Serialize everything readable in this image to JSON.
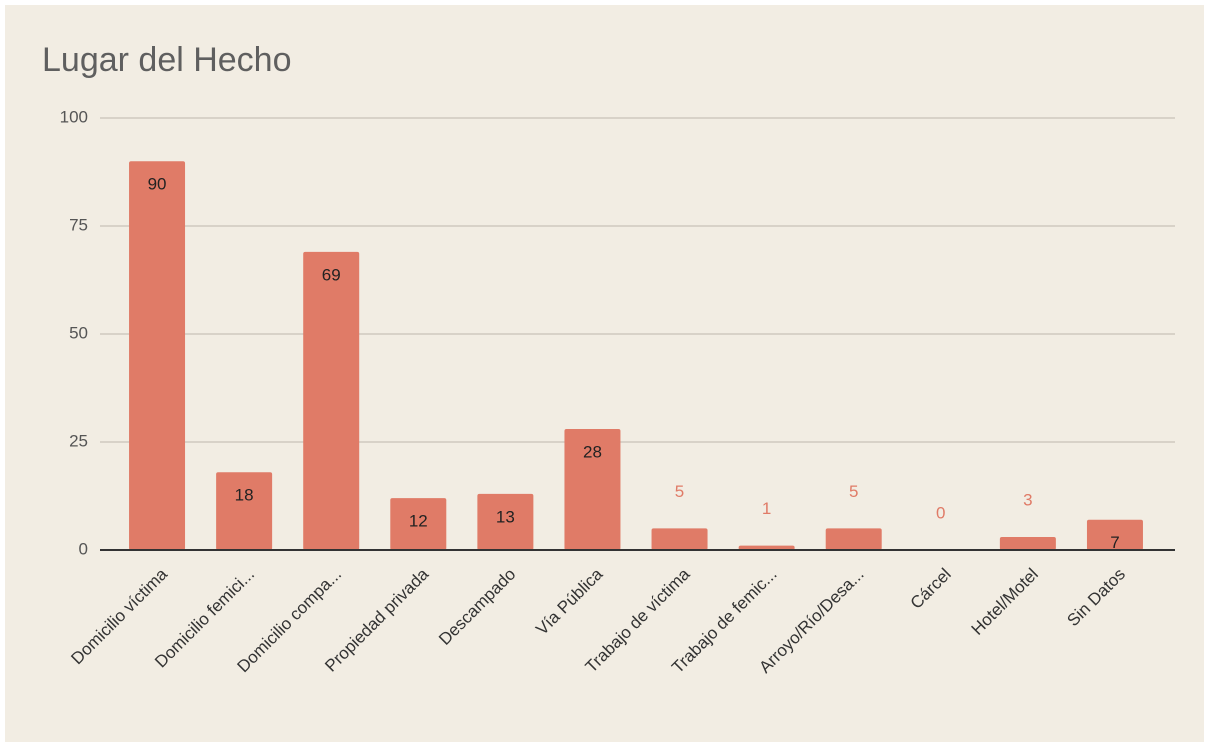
{
  "chart_data": {
    "type": "bar",
    "title": "Lugar del Hecho",
    "categories": [
      "Domicilio víctima",
      "Domicilio femici...",
      "Domicilio compa...",
      "Propiedad privada",
      "Descampado",
      "Vía Pública",
      "Trabajo de víctima",
      "Trabajo de femic...",
      "Arroyo/Río/Desa...",
      "Cárcel",
      "Hotel/Motel",
      "Sin Datos"
    ],
    "values": [
      90,
      18,
      69,
      12,
      13,
      28,
      5,
      1,
      5,
      0,
      3,
      7
    ],
    "color": "#e07b67",
    "ylim": [
      0,
      100
    ],
    "yticks": [
      0,
      25,
      50,
      75,
      100
    ],
    "grid": true
  }
}
